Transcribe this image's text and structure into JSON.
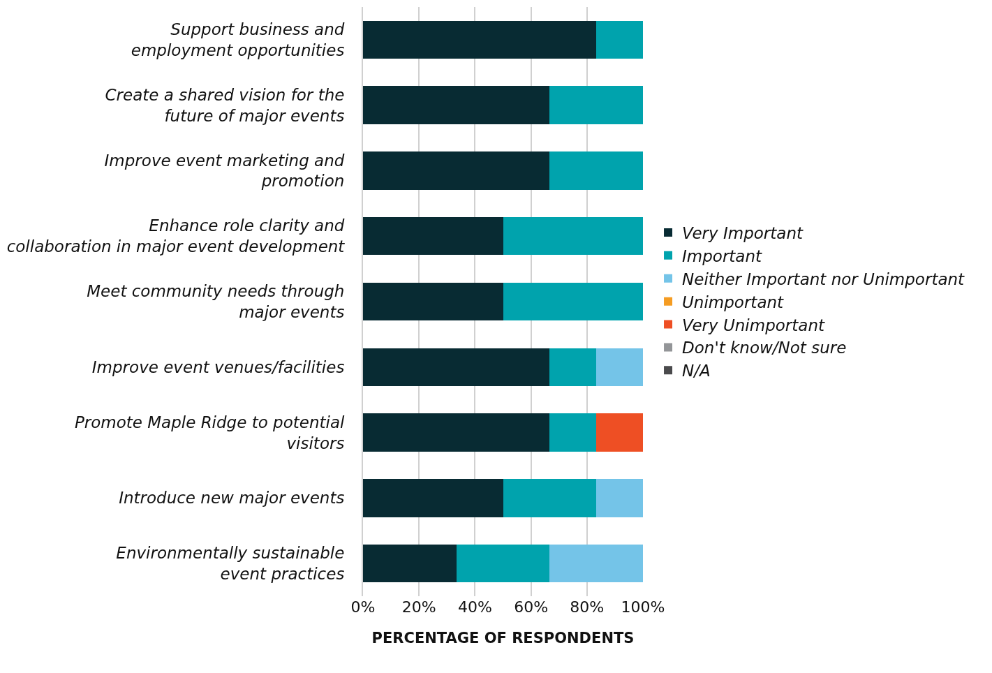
{
  "chart_data": {
    "type": "bar",
    "orientation": "horizontal",
    "stacked": true,
    "xlabel": "PERCENTAGE OF RESPONDENTS",
    "categories": [
      "Support business and\nemployment opportunities",
      "Create a shared vision for the\nfuture of major events",
      "Improve event marketing and\npromotion",
      "Enhance role clarity and\ncollaboration in major event development",
      "Meet community needs through\nmajor events",
      "Improve event venues/facilities",
      "Promote Maple Ridge to potential\nvisitors",
      "Introduce new major events",
      "Environmentally sustainable\nevent practices"
    ],
    "series": [
      {
        "name": "Very Important",
        "color": "#082b33",
        "values": [
          83.3,
          66.7,
          66.7,
          50,
          50,
          66.7,
          66.7,
          50,
          33.3
        ]
      },
      {
        "name": "Important",
        "color": "#00a3ad",
        "values": [
          16.7,
          33.3,
          33.3,
          50,
          50,
          16.7,
          16.7,
          33.3,
          33.3
        ]
      },
      {
        "name": "Neither Important nor Unimportant",
        "color": "#74c4e8",
        "values": [
          0,
          0,
          0,
          0,
          0,
          16.6,
          0,
          16.7,
          33.4
        ]
      },
      {
        "name": "Unimportant",
        "color": "#f59c22",
        "values": [
          0,
          0,
          0,
          0,
          0,
          0,
          0,
          0,
          0
        ]
      },
      {
        "name": "Very Unimportant",
        "color": "#ee4f24",
        "values": [
          0,
          0,
          0,
          0,
          0,
          0,
          16.6,
          0,
          0
        ]
      },
      {
        "name": "Don't know/Not sure",
        "color": "#939598",
        "values": [
          0,
          0,
          0,
          0,
          0,
          0,
          0,
          0,
          0
        ]
      },
      {
        "name": "N/A",
        "color": "#4a4a4c",
        "values": [
          0,
          0,
          0,
          0,
          0,
          0,
          0,
          0,
          0
        ]
      }
    ],
    "xlim": [
      0,
      100
    ],
    "xticks": [
      {
        "value": 0,
        "label": "0%"
      },
      {
        "value": 20,
        "label": "20%"
      },
      {
        "value": 40,
        "label": "40%"
      },
      {
        "value": 60,
        "label": "60%"
      },
      {
        "value": 80,
        "label": "80%"
      },
      {
        "value": 100,
        "label": "100%"
      }
    ],
    "grid": "x",
    "legend": "right"
  }
}
